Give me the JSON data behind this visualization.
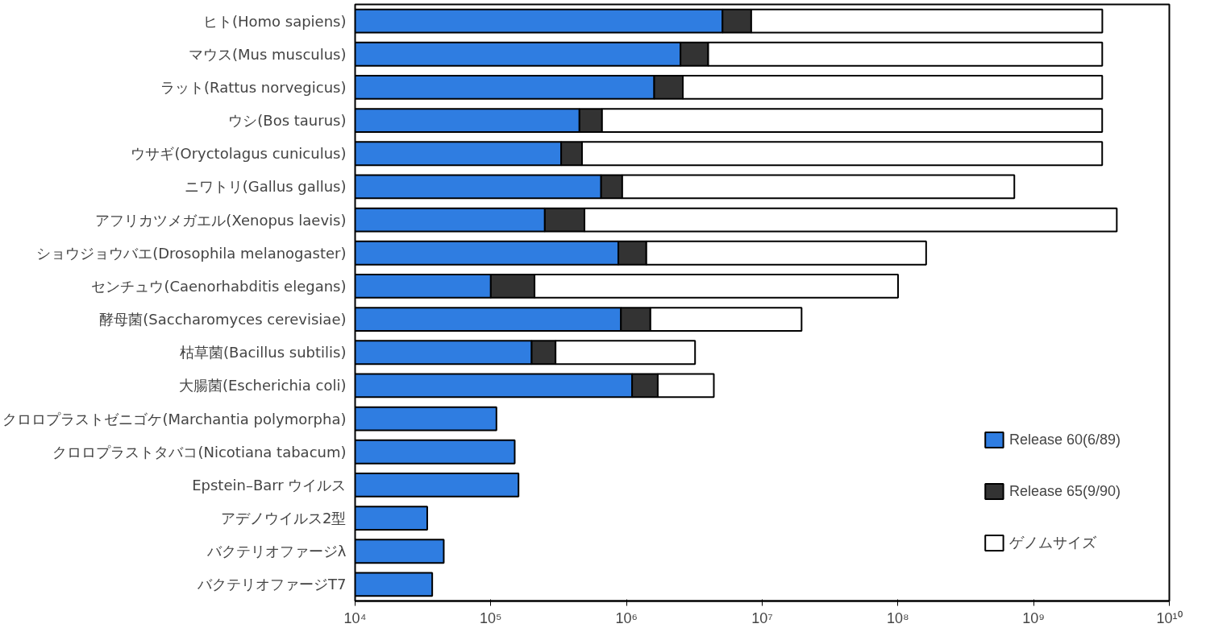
{
  "chart_data": {
    "type": "bar",
    "orientation": "horizontal",
    "stacked": true,
    "log": "x",
    "grid": false,
    "legend": "right",
    "categories": [
      "ヒト(Homo sapiens)",
      "マウス(Mus musculus)",
      "ラット(Rattus norvegicus)",
      "ウシ(Bos taurus)",
      "ウサギ(Oryctolagus cuniculus)",
      "ニワトリ(Gallus gallus)",
      "アフリカツメガエル(Xenopus laevis)",
      "ショウジョウバエ(Drosophila melanogaster)",
      "センチュウ(Caenorhabditis elegans)",
      "酵母菌(Saccharomyces cerevisiae)",
      "枯草菌(Bacillus subtilis)",
      "大腸菌(Escherichia coli)",
      "クロロプラストゼニゴケ(Marchantia polymorpha)",
      "クロロプラストタバコ(Nicotiana tabacum)",
      "Epstein–Barr ウイルス",
      "アデノウイルス2型",
      "バクテリオファージλ",
      "バクテリオファージT7"
    ],
    "series": [
      {
        "name": "Release 60(6/89)",
        "color": "#2f7de1",
        "values": [
          5100000.0,
          2500000.0,
          1600000.0,
          450000.0,
          330000.0,
          650000.0,
          250000.0,
          870000.0,
          100000.0,
          910000.0,
          200000.0,
          1100000.0,
          110000.0,
          150000.0,
          160000.0,
          34000.0,
          45000.0,
          37000.0
        ]
      },
      {
        "name": "Release 65(9/90)",
        "color": "#333333",
        "values": [
          3200000.0,
          1500000.0,
          1000000.0,
          210000.0,
          140000.0,
          280000.0,
          240000.0,
          530000.0,
          110000.0,
          590000.0,
          100000.0,
          600000.0,
          null,
          null,
          null,
          null,
          null,
          null
        ]
      },
      {
        "name": "ゲノムサイズ",
        "color": "#ffffff",
        "values": [
          3200000000.0,
          3200000000.0,
          3200000000.0,
          3200000000.0,
          3200000000.0,
          720000000.0,
          4100000000.0,
          160000000.0,
          100000000.0,
          18000000.0,
          2900000.0,
          2700000.0,
          null,
          null,
          null,
          null,
          null,
          null
        ]
      }
    ],
    "xlim": [
      10000.0,
      10000000000.0
    ],
    "xticks": [
      {
        "value": 10000.0,
        "label": "10⁴"
      },
      {
        "value": 100000.0,
        "label": "10⁵"
      },
      {
        "value": 1000000.0,
        "label": "10⁶"
      },
      {
        "value": 10000000.0,
        "label": "10⁷"
      },
      {
        "value": 100000000.0,
        "label": "10⁸"
      },
      {
        "value": 1000000000.0,
        "label": "10⁹"
      },
      {
        "value": 10000000000.0,
        "label": "10¹⁰"
      }
    ]
  }
}
